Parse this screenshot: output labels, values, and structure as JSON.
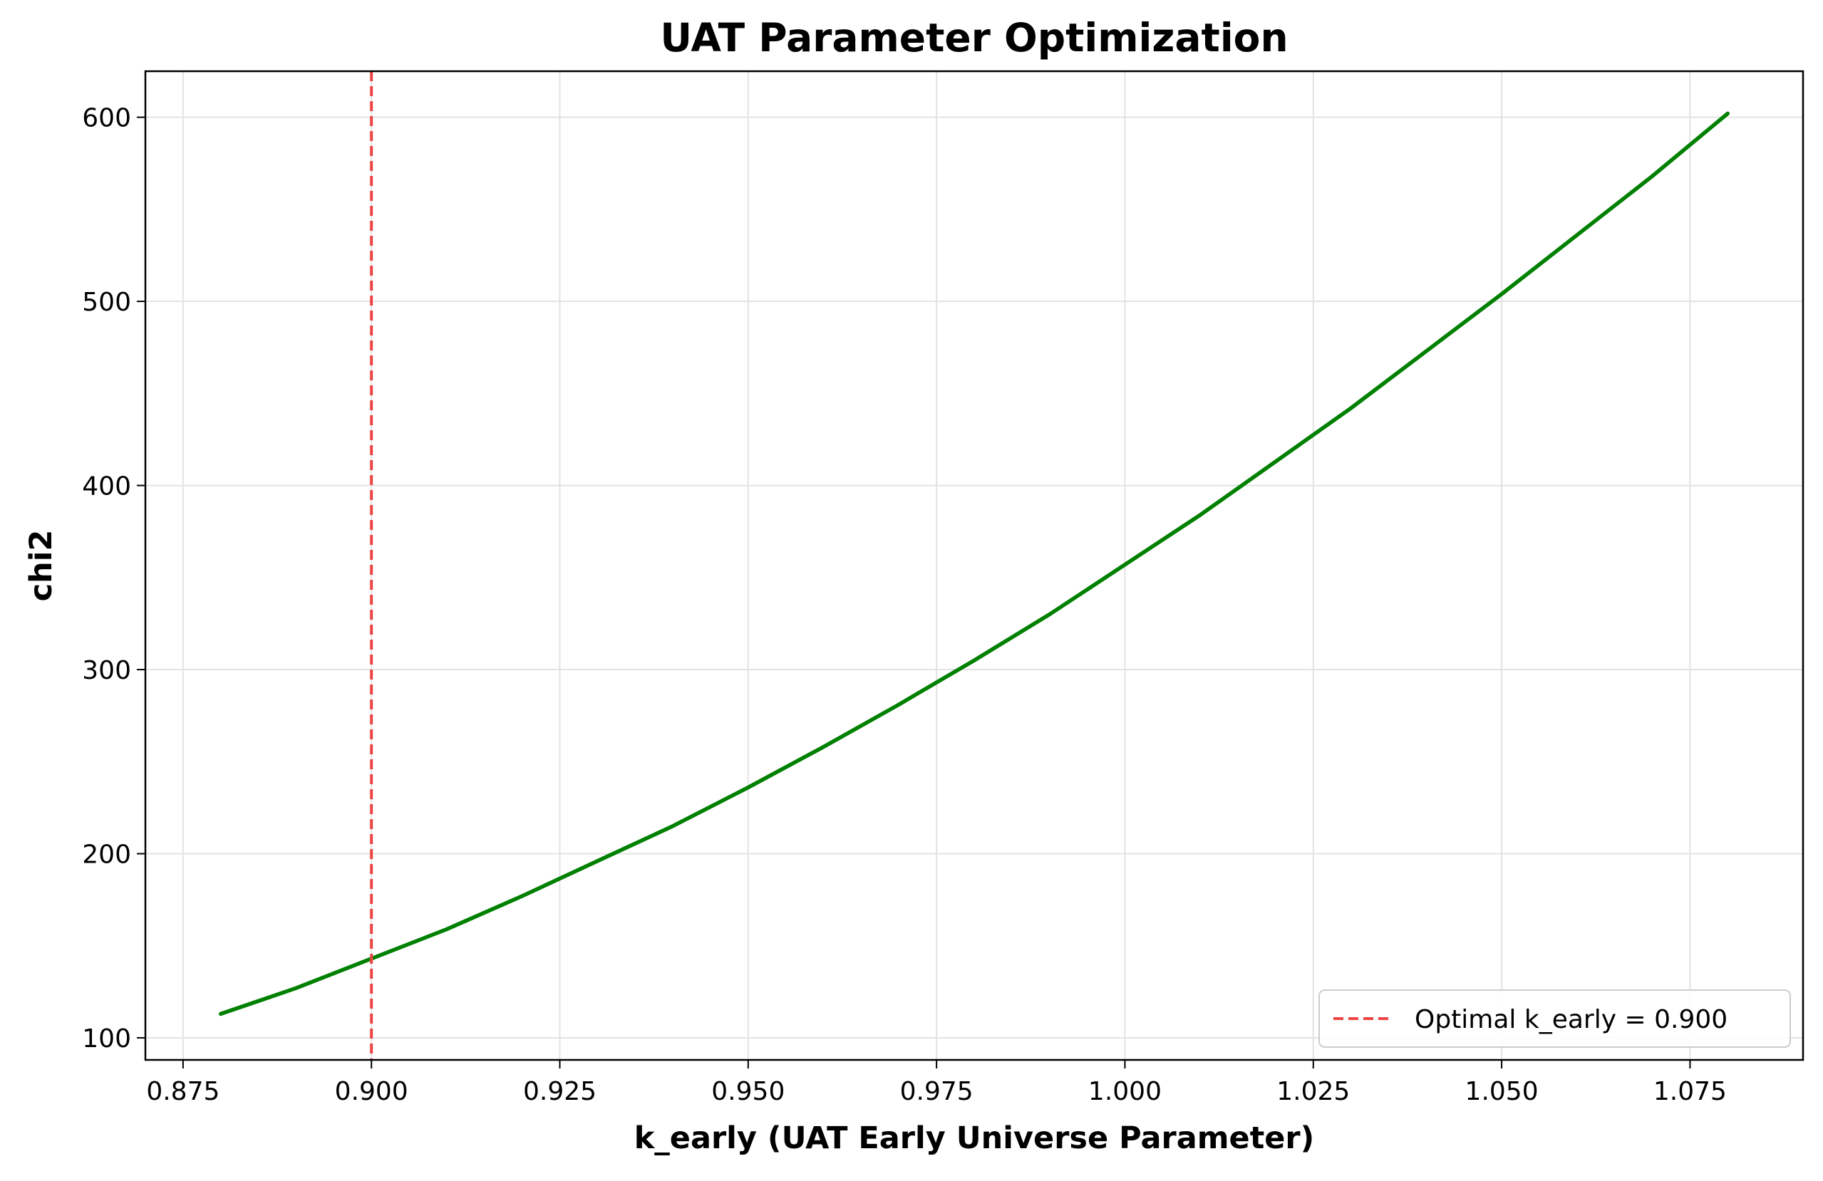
{
  "chart_data": {
    "type": "line",
    "title": "UAT Parameter Optimization",
    "xlabel": "k_early (UAT Early Universe Parameter)",
    "ylabel": "chi2",
    "xlim": [
      0.87,
      1.09
    ],
    "ylim": [
      88,
      625
    ],
    "grid": true,
    "legend_position": "lower-right",
    "x_ticks": [
      "0.875",
      "0.900",
      "0.925",
      "0.950",
      "0.975",
      "1.000",
      "1.025",
      "1.050",
      "1.075"
    ],
    "y_ticks": [
      "100",
      "200",
      "300",
      "400",
      "500",
      "600"
    ],
    "series": [
      {
        "color": "#008000",
        "style": "solid",
        "x": [
          0.88,
          0.89,
          0.9,
          0.91,
          0.92,
          0.93,
          0.94,
          0.95,
          0.96,
          0.97,
          0.98,
          0.99,
          1.0,
          1.01,
          1.02,
          1.03,
          1.04,
          1.05,
          1.06,
          1.07,
          1.08
        ],
        "y": [
          113,
          127,
          143,
          159,
          177,
          196,
          215,
          236,
          258,
          281,
          305,
          330,
          357,
          384,
          413,
          442,
          473,
          504,
          536,
          568,
          602
        ]
      }
    ],
    "vlines": [
      {
        "name": "Optimal k_early = 0.900",
        "x": 0.9,
        "color": "#ef4444",
        "style": "dashed"
      }
    ]
  }
}
